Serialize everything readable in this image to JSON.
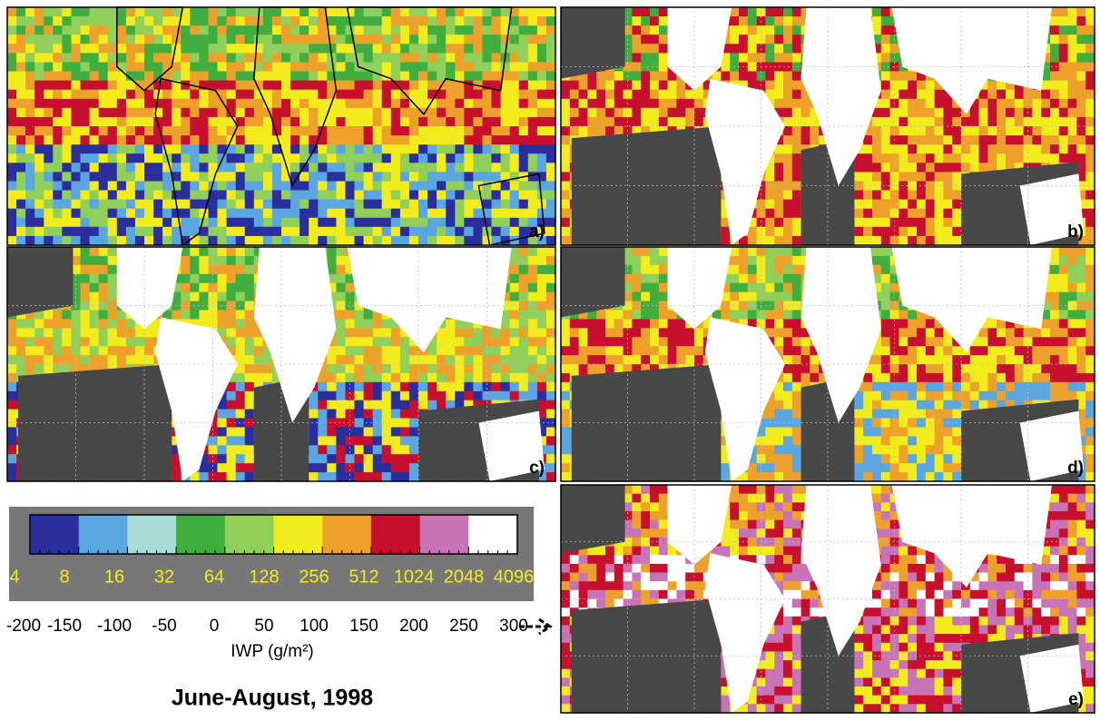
{
  "panels": [
    {
      "label": "a)"
    },
    {
      "label": "b)"
    },
    {
      "label": "c)"
    },
    {
      "label": "d)"
    },
    {
      "label": "e)"
    }
  ],
  "colorbar": {
    "colors": [
      "#2b2f9e",
      "#5aa6e0",
      "#a8dcd9",
      "#3fae3f",
      "#8fcf5a",
      "#f2ec1c",
      "#eea12a",
      "#c8102e",
      "#c873b8",
      "#ffffff"
    ],
    "top_labels": [
      4,
      8,
      16,
      32,
      64,
      128,
      256,
      512,
      1024,
      2048,
      4096
    ],
    "bottom_labels": [
      -200,
      -150,
      -100,
      -50,
      0,
      50,
      100,
      150,
      200,
      250,
      300
    ]
  },
  "axis_label": "IWP (g/m²)",
  "title": "June-August, 1998"
}
